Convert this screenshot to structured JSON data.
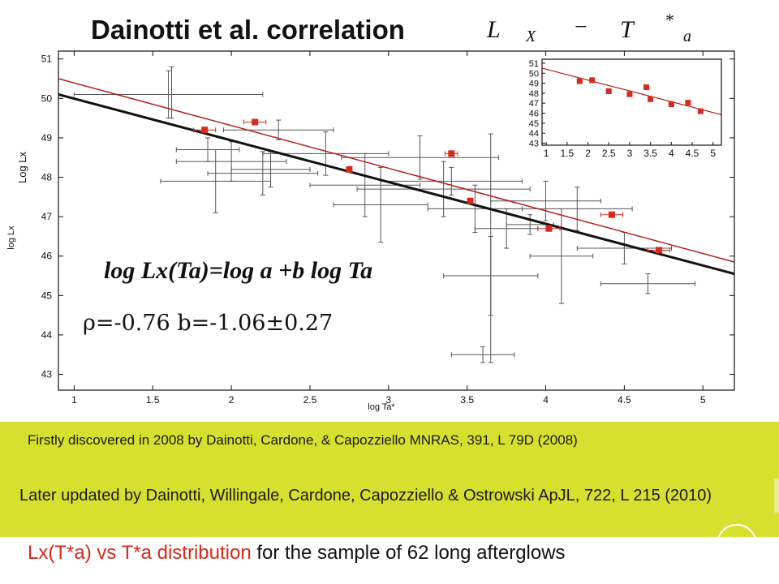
{
  "slide": {
    "title": "Dainotti et al. correlation",
    "formula": {
      "L": "L",
      "X": "X",
      "minus": "−",
      "T": "T",
      "star": "*",
      "a": "a"
    },
    "ylabel_extra": "Log Lx",
    "note_first": "Firstly discovered in 2008 by Dainotti, Cardone,  & Capozziello  MNRAS,  391,  L 79D (2008)",
    "note_later": "Later updated by Dainotti, Willingale, Cardone, Capozziello & Ostrowski ApJL,  722,  L 215 (2010)",
    "caption_red": "Lx(T*a) vs T*a distribution",
    "caption_rest": " for the sample of 62 long afterglows"
  },
  "colors": {
    "red": "#d62a1d",
    "black": "#111111",
    "gray": "#555555",
    "yellow": "#d7df2f"
  },
  "chart_data": [
    {
      "type": "scatter",
      "xlabel": "log Ta*",
      "ylabel": "log Lx",
      "xlim": [
        0.9,
        5.2
      ],
      "ylim": [
        42.6,
        51.2
      ],
      "xticks": [
        1,
        1.5,
        2,
        2.5,
        3,
        3.5,
        4,
        4.5,
        5
      ],
      "yticks": [
        43,
        44,
        45,
        46,
        47,
        48,
        49,
        50,
        51
      ],
      "annotations": [
        "log Lx(Ta)=log a +b log Ta",
        "ρ=-0.76  b=-1.06±0.27"
      ],
      "fit_lines": [
        {
          "color": "#111111",
          "x": [
            0.9,
            5.2
          ],
          "y": [
            50.1,
            45.55
          ]
        },
        {
          "color": "#b02018",
          "x": [
            0.9,
            5.2
          ],
          "y": [
            50.5,
            45.85
          ]
        }
      ],
      "series": [
        {
          "points": [
            {
              "x": 1.6,
              "y": 50.1,
              "xerr": 0.6,
              "yerr": 0.6
            },
            {
              "x": 1.62,
              "y": 50.15,
              "xerr": 0.0,
              "yerr": 0.65
            },
            {
              "x": 1.85,
              "y": 48.7,
              "xerr": 0.2,
              "yerr": 0.3
            },
            {
              "x": 2.0,
              "y": 48.4,
              "xerr": 0.35,
              "yerr": 0.5
            },
            {
              "x": 1.9,
              "y": 47.9,
              "xerr": 0.35,
              "yerr": 0.8
            },
            {
              "x": 2.2,
              "y": 48.1,
              "xerr": 0.35,
              "yerr": 0.55
            },
            {
              "x": 2.25,
              "y": 48.2,
              "xerr": 0.25,
              "yerr": 0.45
            },
            {
              "x": 2.3,
              "y": 49.2,
              "xerr": 0.35,
              "yerr": 0.25
            },
            {
              "x": 2.6,
              "y": 48.6,
              "xerr": 0.4,
              "yerr": 0.55
            },
            {
              "x": 2.85,
              "y": 47.8,
              "xerr": 0.35,
              "yerr": 0.8
            },
            {
              "x": 2.95,
              "y": 47.3,
              "xerr": 0.3,
              "yerr": 0.95
            },
            {
              "x": 3.2,
              "y": 48.5,
              "xerr": 0.5,
              "yerr": 0.55
            },
            {
              "x": 3.35,
              "y": 47.7,
              "xerr": 0.55,
              "yerr": 0.7
            },
            {
              "x": 3.4,
              "y": 47.9,
              "xerr": 0.45,
              "yerr": 0.35
            },
            {
              "x": 3.55,
              "y": 47.2,
              "xerr": 0.3,
              "yerr": 0.6
            },
            {
              "x": 3.65,
              "y": 45.5,
              "xerr": 0.3,
              "yerr": 1.0
            },
            {
              "x": 3.65,
              "y": 46.2,
              "xerr": 0.0,
              "yerr": 2.9
            },
            {
              "x": 3.75,
              "y": 46.7,
              "xerr": 0.2,
              "yerr": 0.5
            },
            {
              "x": 3.9,
              "y": 46.8,
              "xerr": 0.15,
              "yerr": 0.25
            },
            {
              "x": 4.0,
              "y": 47.4,
              "xerr": 0.35,
              "yerr": 0.5
            },
            {
              "x": 4.1,
              "y": 46.0,
              "xerr": 0.2,
              "yerr": 1.2
            },
            {
              "x": 4.2,
              "y": 47.2,
              "xerr": 0.35,
              "yerr": 0.55
            },
            {
              "x": 4.5,
              "y": 46.2,
              "xerr": 0.3,
              "yerr": 0.4
            },
            {
              "x": 4.65,
              "y": 45.3,
              "xerr": 0.3,
              "yerr": 0.25
            },
            {
              "x": 3.6,
              "y": 43.5,
              "xerr": 0.2,
              "yerr": 0.2
            }
          ]
        },
        {
          "color": "#d62a1d",
          "points": [
            {
              "x": 1.83,
              "y": 49.2,
              "xerr": 0.07,
              "yerr": 0.0
            },
            {
              "x": 2.15,
              "y": 49.4,
              "xerr": 0.07,
              "yerr": 0.0
            },
            {
              "x": 2.75,
              "y": 48.2,
              "xerr": 0.0,
              "yerr": 0.0
            },
            {
              "x": 3.4,
              "y": 48.6,
              "xerr": 0.04,
              "yerr": 0.0
            },
            {
              "x": 3.52,
              "y": 47.4,
              "xerr": 0.0,
              "yerr": 0.0
            },
            {
              "x": 4.02,
              "y": 46.7,
              "xerr": 0.07,
              "yerr": 0.0
            },
            {
              "x": 4.42,
              "y": 47.05,
              "xerr": 0.07,
              "yerr": 0.0
            },
            {
              "x": 4.72,
              "y": 46.15,
              "xerr": 0.07,
              "yerr": 0.0
            }
          ]
        }
      ]
    },
    {
      "type": "scatter",
      "xlim": [
        0.9,
        5.2
      ],
      "ylim": [
        42.8,
        51.4
      ],
      "xticks": [
        1,
        1.5,
        2,
        2.5,
        3,
        3.5,
        4,
        4.5,
        5
      ],
      "xticklabels": [
        "1",
        "1.5",
        "2",
        "2.5",
        "3",
        "3.5",
        "4",
        "4.5",
        "5"
      ],
      "yticks": [
        43,
        44,
        45,
        46,
        47,
        48,
        49,
        50,
        51
      ],
      "fit_line": {
        "color": "#b02018",
        "x": [
          0.9,
          5.2
        ],
        "y": [
          50.5,
          45.85
        ]
      },
      "series": [
        {
          "color": "#d62a1d",
          "x": [
            1.8,
            2.1,
            2.5,
            3.0,
            3.4,
            3.5,
            4.0,
            4.4,
            4.7
          ],
          "y": [
            49.2,
            49.3,
            48.2,
            47.9,
            48.6,
            47.4,
            46.9,
            47.05,
            46.2
          ]
        }
      ]
    }
  ]
}
